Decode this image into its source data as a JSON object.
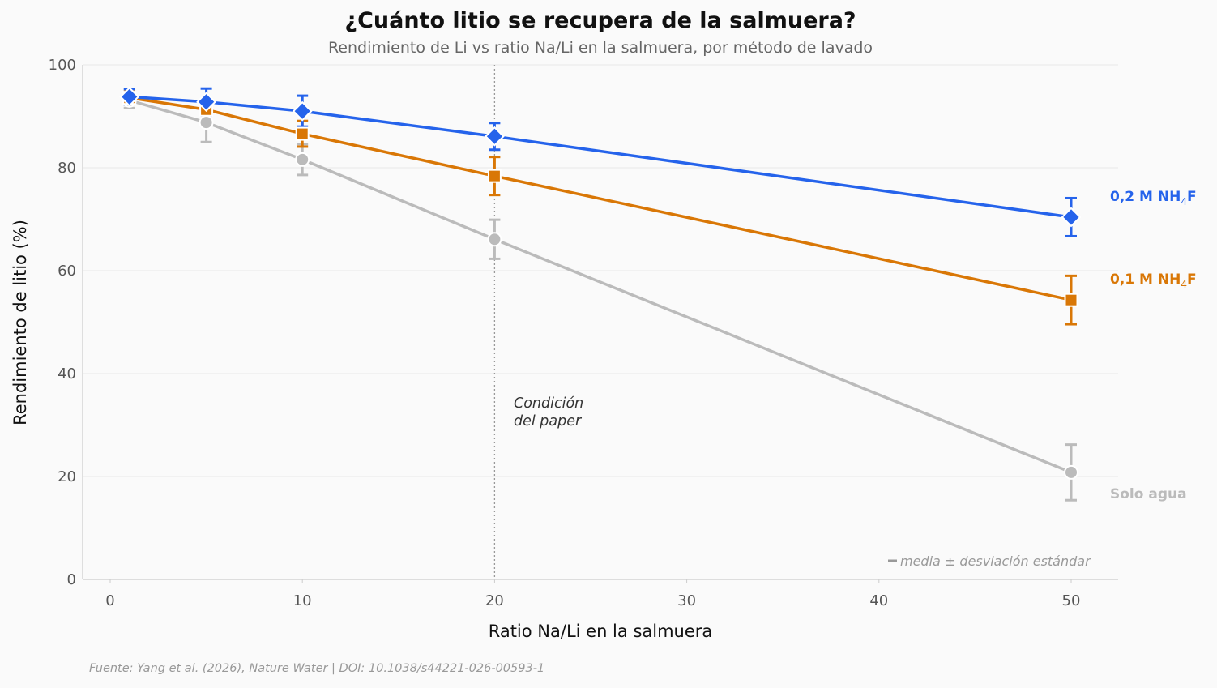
{
  "header": {
    "title": "¿Cuánto litio se recupera de la salmuera?",
    "subtitle": "Rendimiento de Li vs ratio Na/Li en la salmuera, por método de lavado"
  },
  "footer": {
    "source": "Fuente: Yang et al. (2026), Nature Water | DOI: 10.1038/s44221-026-00593-1"
  },
  "annotations": {
    "paper_condition_line1": "Condición",
    "paper_condition_line2": "del paper",
    "error_note": "media ± desviación estándar"
  },
  "chart_data": {
    "type": "line",
    "title": "¿Cuánto litio se recupera de la salmuera?",
    "subtitle": "Rendimiento de Li vs ratio Na/Li en la salmuera, por método de lavado",
    "xlabel": "Ratio Na/Li en la salmuera",
    "ylabel": "Rendimiento de litio (%)",
    "x": [
      1,
      5,
      10,
      20,
      50
    ],
    "xlim": [
      -1.5,
      52.5
    ],
    "ylim": [
      0,
      100
    ],
    "xticks": [
      0,
      10,
      20,
      30,
      40,
      50
    ],
    "yticks": [
      0,
      20,
      40,
      60,
      80,
      100
    ],
    "grid": "horizontal",
    "legend": "direct labels at line ends",
    "vline": {
      "x": 20,
      "label": "Condición del paper",
      "style": "dotted"
    },
    "series": [
      {
        "name": "0,2 M NH4F",
        "label_main": "0,2 M NH",
        "label_sub": "4",
        "label_end": "F",
        "color": "#2563eb",
        "marker": "diamond",
        "values": [
          93.8,
          92.8,
          91.0,
          86.1,
          70.4
        ],
        "errors": [
          1.5,
          2.6,
          3.0,
          2.6,
          3.7
        ]
      },
      {
        "name": "0,1 M NH4F",
        "label_main": "0,1 M NH",
        "label_sub": "4",
        "label_end": "F",
        "color": "#d97706",
        "marker": "square",
        "values": [
          93.6,
          91.3,
          86.6,
          78.4,
          54.3
        ],
        "errors": [
          1.2,
          2.0,
          2.5,
          3.7,
          4.7
        ]
      },
      {
        "name": "Solo agua",
        "label_main": "Solo agua",
        "label_sub": "",
        "label_end": "",
        "color": "#bbbbbb",
        "marker": "circle",
        "values": [
          93.1,
          88.8,
          81.6,
          66.1,
          20.8
        ],
        "errors": [
          1.5,
          3.8,
          3.0,
          3.8,
          5.4
        ]
      }
    ],
    "annotations": [
      "Condición del paper",
      "media ± desviación estándar"
    ]
  }
}
